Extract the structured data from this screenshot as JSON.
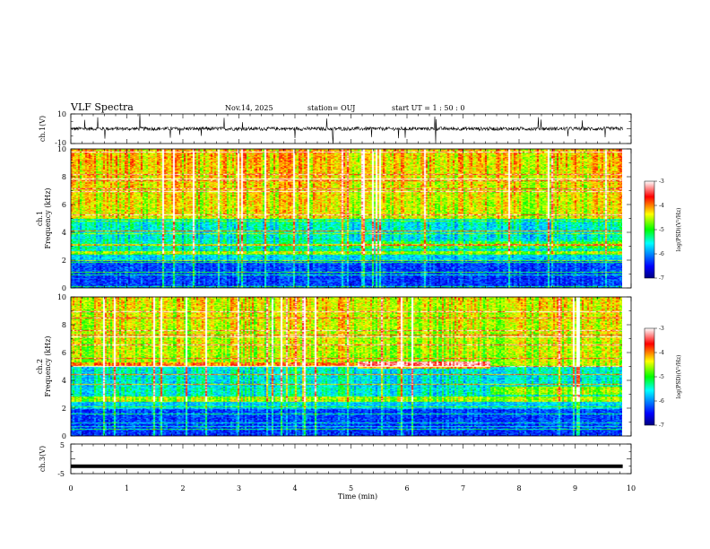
{
  "header": {
    "title": "VLF Spectra",
    "date": "Nov.14, 2025",
    "station": "station= OUJ",
    "start": "start  UT =   1 : 50 : 0"
  },
  "chart_data": [
    {
      "id": "ch1-waveform",
      "type": "line",
      "ylabel": "ch.1(V)",
      "ylim": [
        -10,
        10
      ],
      "yticks": [
        "10",
        "-10"
      ],
      "baseline": 0,
      "noise_amplitude": 1.2,
      "color": "#000000"
    },
    {
      "id": "ch1-spectrogram",
      "type": "heatmap",
      "ylabel_top": "ch.1",
      "ylabel": "Frequency (kHz)",
      "ylim": [
        0,
        10
      ],
      "yticks": [
        "0",
        "2",
        "4",
        "6",
        "8",
        "10"
      ],
      "features": {
        "band_5kHz_after_min": null,
        "band_2_5kHz_levels": [
          -5.6,
          -5.2
        ]
      },
      "colorbar": {
        "label": "log(PSD)(V²/Hz)",
        "range": [
          -7,
          -3
        ],
        "ticks": [
          "-3",
          "-4",
          "-5",
          "-6",
          "-7"
        ]
      }
    },
    {
      "id": "ch2-spectrogram",
      "type": "heatmap",
      "ylabel_top": "ch.2",
      "ylabel": "Frequency (kHz)",
      "ylim": [
        0,
        10
      ],
      "yticks": [
        "0",
        "2",
        "4",
        "6",
        "8",
        "10"
      ],
      "features": {
        "band_5kHz_min_range": [
          5.2,
          7.6
        ],
        "shift_at_min": 7.6
      },
      "colorbar": {
        "label": "log(PSD)(V²/Hz)",
        "range": [
          -7,
          -3
        ],
        "ticks": [
          "-3",
          "-4",
          "-5",
          "-6",
          "-7"
        ]
      }
    },
    {
      "id": "ch3-signal",
      "type": "line",
      "ylabel": "ch.3(V)",
      "ylim": [
        -5,
        5
      ],
      "yticks": [
        "5",
        "0",
        "-5"
      ],
      "value": -2.5,
      "color": "#000000"
    }
  ],
  "x_axis": {
    "label": "Time (min)",
    "range": [
      0,
      10
    ],
    "ticks": [
      "0",
      "1",
      "2",
      "3",
      "4",
      "5",
      "6",
      "7",
      "8",
      "9",
      "10"
    ],
    "data_end": 9.85
  },
  "colors": {
    "colormap": [
      "#00007f",
      "#0000ff",
      "#00ffff",
      "#00ff00",
      "#ffff00",
      "#ff0000",
      "#ffffff"
    ]
  }
}
